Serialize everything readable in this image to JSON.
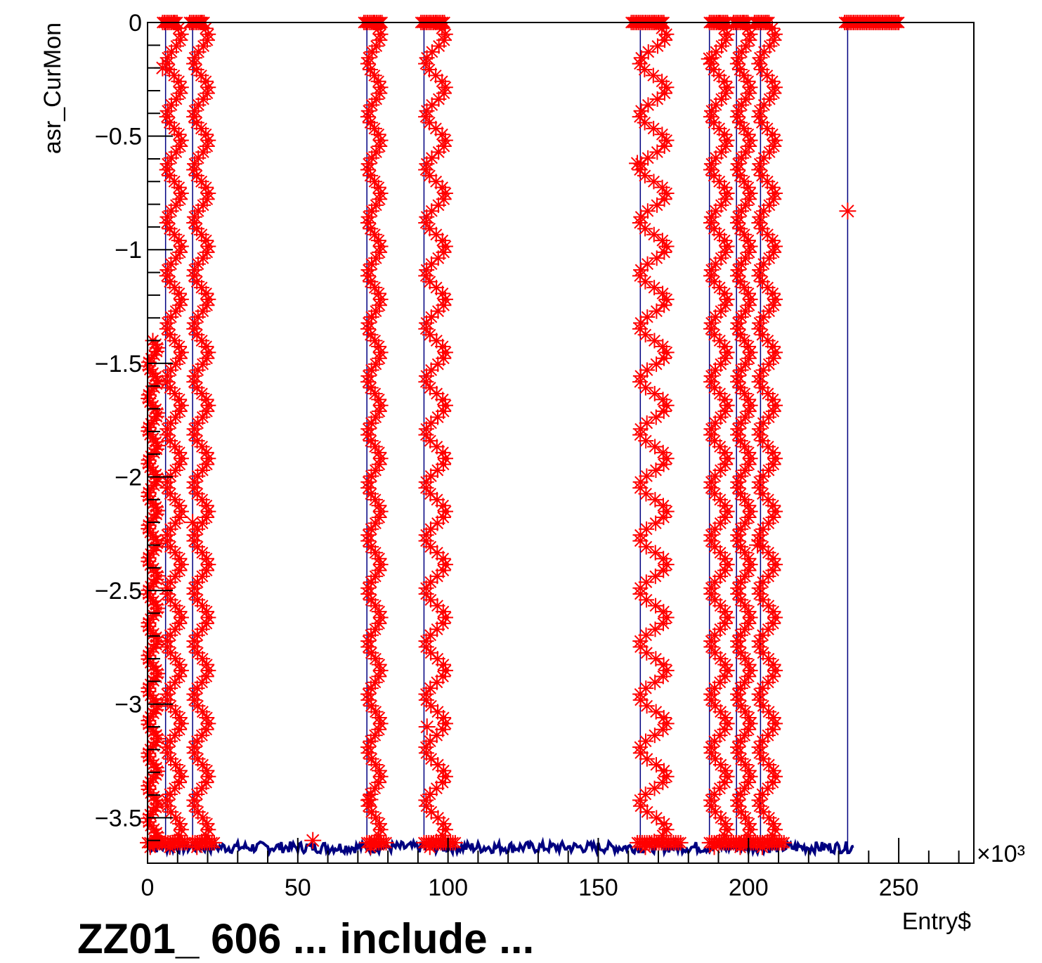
{
  "chart_data": {
    "type": "scatter",
    "title": "",
    "xlabel": "Entry$",
    "ylabel": "asr_CurMon",
    "xlim": [
      0,
      275
    ],
    "ylim": [
      -3.7,
      0
    ],
    "x_multiplier": "×10³",
    "x_ticks": [
      "0",
      "50",
      "100",
      "150",
      "200",
      "250"
    ],
    "y_ticks": [
      "0",
      "−0.5",
      "−1",
      "−1.5",
      "−2",
      "−2.5",
      "−3",
      "−3.5"
    ],
    "grid": false,
    "legend": "none",
    "colors": {
      "baseline": "#000080",
      "markers": "#ff0000",
      "axis": "#000000"
    },
    "series": [
      {
        "marker": "star",
        "baseline_level": -3.63,
        "baseline_x_range": [
          0,
          235
        ],
        "ramp_segments": [
          {
            "x_start": 0,
            "x_end": 5,
            "y_top": -1.4
          },
          {
            "x_start": 6,
            "x_end": 14,
            "y_top": 0
          },
          {
            "x_start": 15,
            "x_end": 23,
            "y_top": 0
          },
          {
            "x_start": 73,
            "x_end": 80,
            "y_top": 0
          },
          {
            "x_start": 92,
            "x_end": 103,
            "y_top": 0
          },
          {
            "x_start": 163,
            "x_end": 178,
            "y_top": 0
          },
          {
            "x_start": 187,
            "x_end": 196,
            "y_top": 0
          },
          {
            "x_start": 196,
            "x_end": 203,
            "y_top": 0
          },
          {
            "x_start": 203,
            "x_end": 212,
            "y_top": 0
          }
        ],
        "plateau_segments": [
          {
            "x_start": 5,
            "x_end": 10,
            "y": 0
          },
          {
            "x_start": 14,
            "x_end": 19,
            "y": 0
          },
          {
            "x_start": 72,
            "x_end": 78,
            "y": 0
          },
          {
            "x_start": 91,
            "x_end": 99,
            "y": 0
          },
          {
            "x_start": 161,
            "x_end": 172,
            "y": 0
          },
          {
            "x_start": 187,
            "x_end": 193,
            "y": 0
          },
          {
            "x_start": 195,
            "x_end": 200,
            "y": 0
          },
          {
            "x_start": 202,
            "x_end": 207,
            "y": 0
          },
          {
            "x_start": 232,
            "x_end": 250,
            "y": 0
          }
        ],
        "isolated_points": [
          {
            "x": 5,
            "y": -0.2
          },
          {
            "x": 15,
            "y": -2.2
          },
          {
            "x": 55,
            "y": -3.6
          },
          {
            "x": 74,
            "y": -3.42
          },
          {
            "x": 93,
            "y": -3.1
          },
          {
            "x": 163,
            "y": -0.62
          },
          {
            "x": 187,
            "y": -0.16
          },
          {
            "x": 203,
            "y": -2.3
          },
          {
            "x": 233,
            "y": -0.83
          }
        ],
        "vertical_lines_x": [
          6,
          15,
          73,
          92,
          164,
          187,
          196,
          204,
          233
        ]
      }
    ]
  },
  "footer_text": "ZZ01_ 606 ... include ..."
}
